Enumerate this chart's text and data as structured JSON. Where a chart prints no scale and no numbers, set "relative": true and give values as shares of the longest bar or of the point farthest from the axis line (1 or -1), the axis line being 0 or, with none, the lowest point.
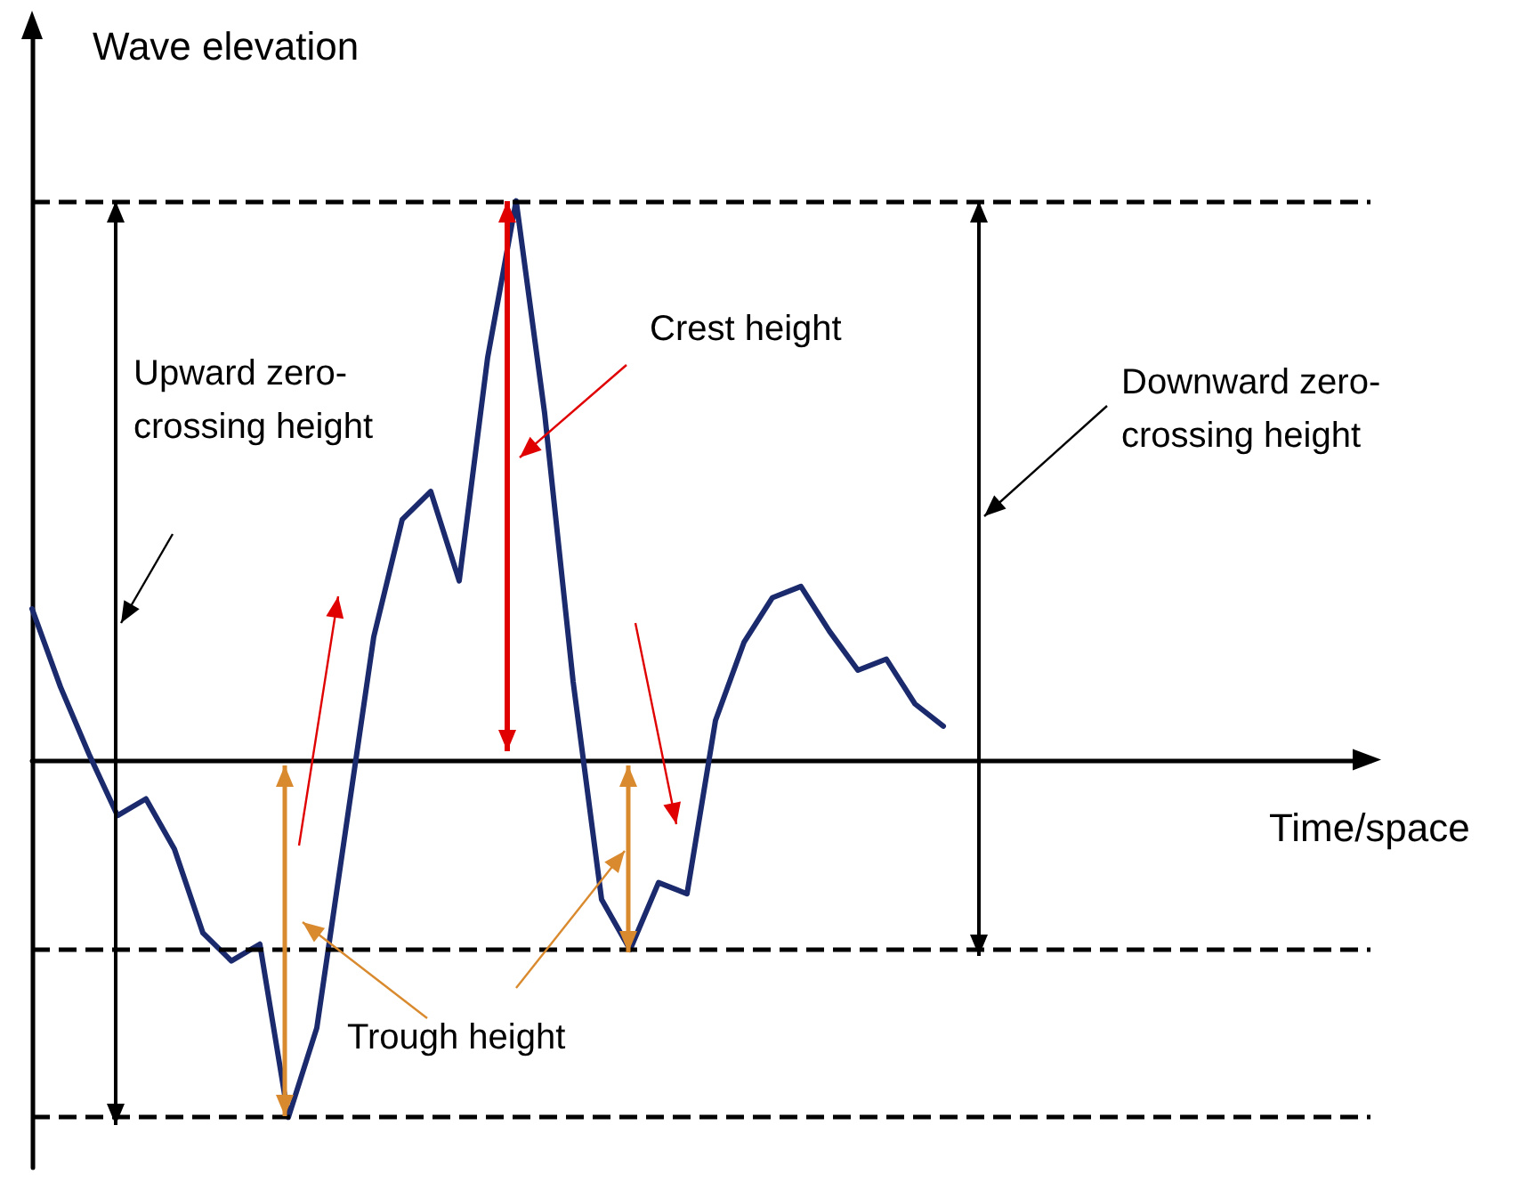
{
  "chart_data": {
    "type": "line",
    "relative": true,
    "ylabel": "Wave elevation",
    "xlabel": "Time/space",
    "categories": [
      null,
      null,
      null,
      null,
      null,
      null,
      null,
      null,
      null,
      null,
      null,
      null,
      null,
      null,
      null,
      null,
      null,
      null,
      null,
      null,
      null,
      null,
      null,
      null,
      null,
      null,
      null,
      null,
      null,
      null,
      null,
      null,
      null,
      null,
      null,
      null,
      null,
      null,
      null,
      null,
      null,
      null,
      null,
      null,
      null,
      null,
      null,
      null
    ],
    "series": [
      {
        "color": "#1a2a6c",
        "values": [
          0.27,
          0.13,
          0.01,
          -0.1,
          -0.07,
          -0.16,
          -0.31,
          -0.36,
          -0.33,
          -0.64,
          -0.48,
          -0.13,
          0.22,
          0.43,
          0.48,
          0.32,
          0.72,
          1.0,
          0.62,
          0.14,
          -0.25,
          -0.34,
          -0.22,
          -0.24,
          0.07,
          0.21,
          0.29,
          0.31,
          0.23,
          0.16,
          0.18,
          0.1,
          0.06,
          null,
          null,
          null,
          null,
          null,
          null,
          null,
          null,
          null,
          null,
          null,
          null,
          null,
          null,
          null
        ]
      }
    ],
    "ref_lines": [
      {
        "axis": "y",
        "value": 1,
        "line_style": "dashed",
        "color": "#000000"
      },
      {
        "axis": "y",
        "value": -0.64,
        "line_style": "dashed",
        "color": "#000000"
      },
      {
        "axis": "y",
        "value": -0.34,
        "line_style": "dashed",
        "color": "#000000"
      }
    ],
    "annotations": [
      "Crest height",
      "Upward zero-\ncrossing height",
      "Downward zero-\ncrossing height",
      "Trough height"
    ],
    "marker": "none",
    "line_style": "solid",
    "grid": false
  }
}
